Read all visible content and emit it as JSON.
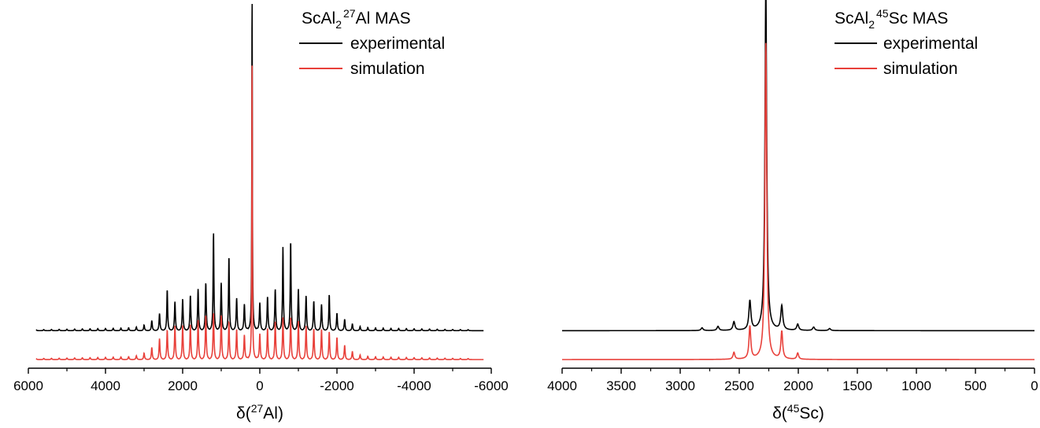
{
  "colors": {
    "experimental": "#000000",
    "simulation": "#e8403a",
    "axis": "#000000"
  },
  "chart_data": [
    {
      "type": "line",
      "title_prefix": "ScAl",
      "title_sub": "2",
      "title_sup": "27",
      "title_suffix": "Al MAS",
      "xlabel_prefix": "δ(",
      "xlabel_sup": "27",
      "xlabel_suffix": "Al)",
      "xlim": [
        6000,
        -6000
      ],
      "x_reversed": true,
      "xticks": [
        6000,
        4000,
        2000,
        0,
        -2000,
        -4000,
        -6000
      ],
      "xtick_labels": [
        "6000",
        "4000",
        "2000",
        "0",
        "-2000",
        "-4000",
        "-6000"
      ],
      "minor_step": 1000,
      "data_range": [
        5800,
        -5800
      ],
      "y_axis_shown": false,
      "legend_position": "top-right",
      "series": [
        {
          "name": "experimental",
          "role": "experimental",
          "offset": 0.14,
          "peaks": [
            {
              "x": 200,
              "height": 1.0,
              "width": 8
            },
            {
              "x": 1200,
              "height": 0.14,
              "width": 10
            },
            {
              "x": 800,
              "height": 0.1,
              "width": 10
            },
            {
              "x": -800,
              "height": 0.13,
              "width": 10
            },
            {
              "x": -600,
              "height": 0.11,
              "width": 10
            },
            {
              "x": 2400,
              "height": 0.05,
              "width": 10
            },
            {
              "x": -1800,
              "height": 0.04,
              "width": 10
            }
          ],
          "sideband_center": 200,
          "sideband_spacing": 200,
          "sideband_count": 28,
          "envelope": [
            {
              "x": 1200,
              "amp": 0.12,
              "sigma": 550
            },
            {
              "x": -700,
              "amp": 0.11,
              "sigma": 550
            },
            {
              "x": 2300,
              "amp": 0.045,
              "sigma": 350
            },
            {
              "x": -1800,
              "amp": 0.035,
              "sigma": 350
            },
            {
              "x": 200,
              "amp": 0.012,
              "sigma": 3200
            }
          ]
        },
        {
          "name": "simulation",
          "role": "simulation",
          "offset": 0.0,
          "peaks": [
            {
              "x": 200,
              "height": 0.9,
              "width": 8
            }
          ],
          "sideband_center": 200,
          "sideband_spacing": 200,
          "sideband_count": 28,
          "envelope": [
            {
              "x": 1200,
              "amp": 0.11,
              "sigma": 550
            },
            {
              "x": -700,
              "amp": 0.1,
              "sigma": 550
            },
            {
              "x": 2300,
              "amp": 0.06,
              "sigma": 350
            },
            {
              "x": -1800,
              "amp": 0.05,
              "sigma": 350
            },
            {
              "x": 200,
              "amp": 0.012,
              "sigma": 3200
            }
          ]
        }
      ]
    },
    {
      "type": "line",
      "title_prefix": "ScAl",
      "title_sub": "2",
      "title_sup": "45",
      "title_suffix": "Sc MAS",
      "xlabel_prefix": "δ(",
      "xlabel_sup": "45",
      "xlabel_suffix": "Sc)",
      "xlim": [
        4000,
        0
      ],
      "x_reversed": true,
      "xticks": [
        4000,
        3500,
        3000,
        2500,
        2000,
        1500,
        1000,
        500,
        0
      ],
      "xtick_labels": [
        "4000",
        "3500",
        "3000",
        "2500",
        "2000",
        "1500",
        "1000",
        "500",
        "0"
      ],
      "minor_step": 250,
      "data_range": [
        4000,
        0
      ],
      "y_axis_shown": false,
      "legend_position": "top-right",
      "series": [
        {
          "name": "experimental",
          "role": "experimental",
          "offset": 0.14,
          "peaks": [
            {
              "x": 2275,
              "height": 1.0,
              "width": 9
            },
            {
              "x": 2410,
              "height": 0.085,
              "width": 10
            },
            {
              "x": 2140,
              "height": 0.07,
              "width": 10
            },
            {
              "x": 2545,
              "height": 0.025,
              "width": 10
            },
            {
              "x": 2005,
              "height": 0.018,
              "width": 10
            },
            {
              "x": 2680,
              "height": 0.012,
              "width": 10
            },
            {
              "x": 1870,
              "height": 0.01,
              "width": 10
            },
            {
              "x": 2815,
              "height": 0.008,
              "width": 10
            },
            {
              "x": 1735,
              "height": 0.006,
              "width": 10
            }
          ]
        },
        {
          "name": "simulation",
          "role": "simulation",
          "offset": 0.0,
          "peaks": [
            {
              "x": 2275,
              "height": 0.92,
              "width": 9
            },
            {
              "x": 2410,
              "height": 0.095,
              "width": 9
            },
            {
              "x": 2140,
              "height": 0.08,
              "width": 9
            },
            {
              "x": 2545,
              "height": 0.02,
              "width": 9
            },
            {
              "x": 2005,
              "height": 0.018,
              "width": 9
            }
          ]
        }
      ]
    }
  ]
}
